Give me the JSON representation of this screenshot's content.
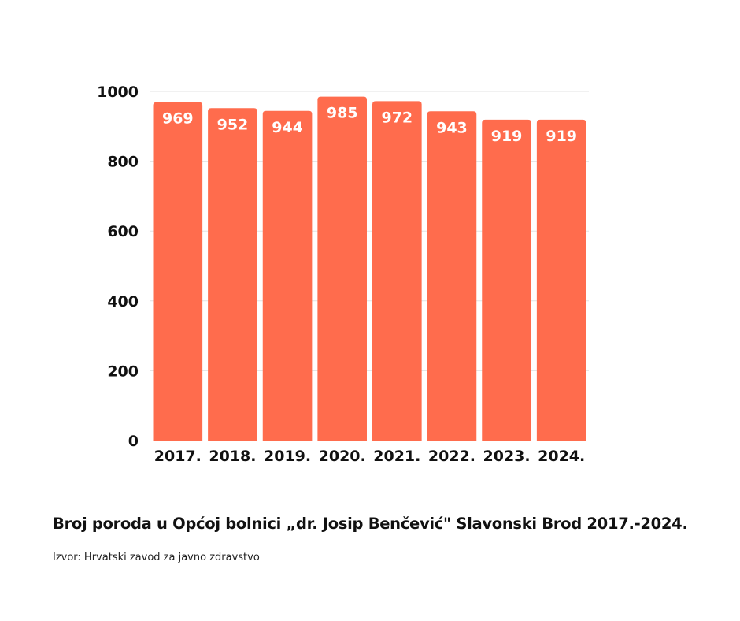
{
  "chart_data": {
    "type": "bar",
    "categories": [
      "2017.",
      "2018.",
      "2019.",
      "2020.",
      "2021.",
      "2022.",
      "2023.",
      "2024."
    ],
    "values": [
      969,
      952,
      944,
      985,
      972,
      943,
      919,
      919
    ],
    "ylim": [
      0,
      1000
    ],
    "yticks": [
      0,
      200,
      400,
      600,
      800,
      1000
    ],
    "grid": true,
    "bar_color": "#ff6c4d",
    "grid_color": "#e3e3e3",
    "title": "Broj poroda u Općoj bolnici „dr. Josip Benčević\" Slavonski Brod 2017.-2024.",
    "source": "Izvor: Hrvatski zavod za javno zdravstvo"
  }
}
